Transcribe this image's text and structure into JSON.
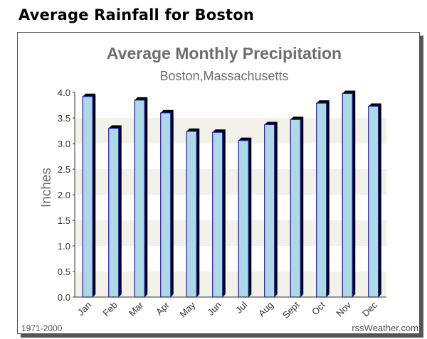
{
  "page": {
    "heading": "Average Rainfall for Boston"
  },
  "chart_data": {
    "type": "bar",
    "title": "Average Monthly Precipitation",
    "subtitle": "Boston,Massachusetts",
    "ylabel": "Inches",
    "xlabel": "",
    "categories": [
      "Jan",
      "Feb",
      "Mar",
      "Apr",
      "May",
      "Jun",
      "Jul",
      "Aug",
      "Sept",
      "Oct",
      "Nov",
      "Dec"
    ],
    "values": [
      3.92,
      3.3,
      3.85,
      3.6,
      3.24,
      3.22,
      3.06,
      3.37,
      3.47,
      3.79,
      3.98,
      3.73
    ],
    "ylim": [
      0,
      4
    ],
    "yticks": [
      "0.0",
      "0.5",
      "1.0",
      "1.5",
      "2.0",
      "2.5",
      "3.0",
      "3.5",
      "4.0"
    ],
    "grid": true,
    "footer_left": "1971-2000",
    "footer_right": "rssWeather.com",
    "colors": {
      "bar_fill": "#add8e6",
      "bar_edge": "#1a1aa0",
      "bar_shadow": "#000000",
      "band_light": "#f2f1ea",
      "band_white": "#ffffff",
      "title": "#6e6e6e"
    }
  }
}
